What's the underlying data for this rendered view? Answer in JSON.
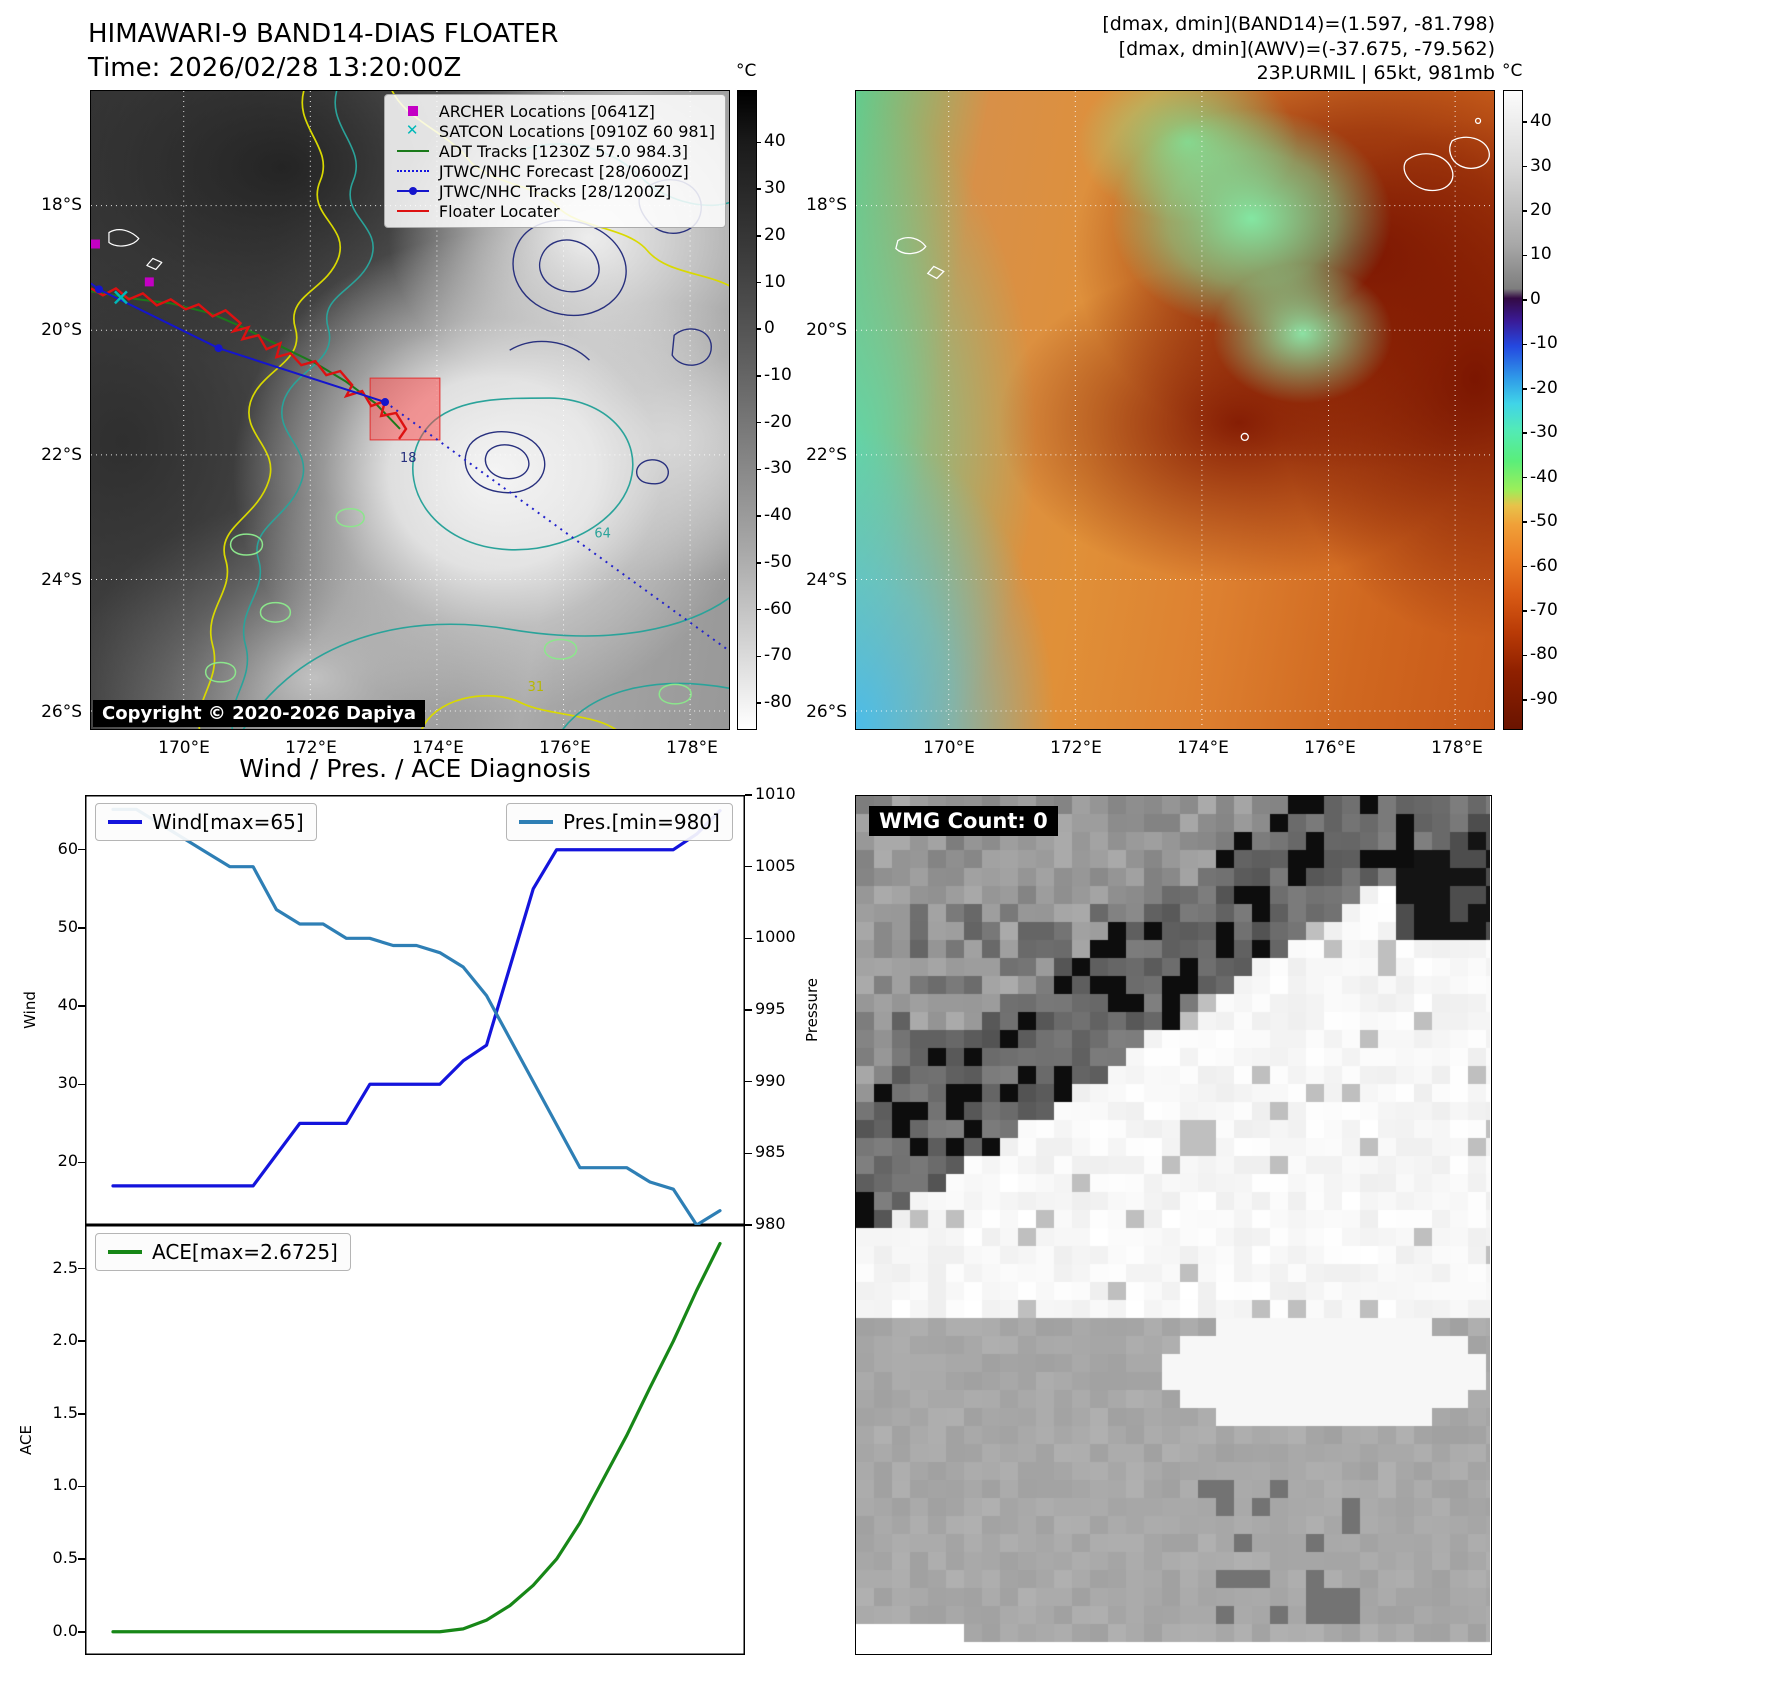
{
  "band14_panel": {
    "title": "HIMAWARI-9 BAND14-DIAS FLOATER",
    "time": "Time: 2026/02/28 13:20:00Z",
    "legend": [
      {
        "label": "ARCHER Locations [0641Z]",
        "marker": "square",
        "color": "#c400c4"
      },
      {
        "label": "SATCON Locations [0910Z 60 981]",
        "marker": "x",
        "color": "#00b8b8"
      },
      {
        "label": "ADT Tracks [1230Z 57.0 984.3]",
        "marker": "line",
        "color": "#1a7a1a"
      },
      {
        "label": "JTWC/NHC Forecast [28/0600Z]",
        "marker": "dotted",
        "color": "#1515e0"
      },
      {
        "label": "JTWC/NHC Tracks [28/1200Z]",
        "marker": "line-dot",
        "color": "#1515cc"
      },
      {
        "label": "Floater Locater",
        "marker": "line",
        "color": "#dd1111"
      }
    ],
    "copyright": "Copyright © 2020-2026 Dapiya",
    "lat_ticks": [
      "18°S",
      "20°S",
      "22°S",
      "24°S",
      "26°S"
    ],
    "lon_ticks": [
      "170°E",
      "172°E",
      "174°E",
      "176°E",
      "178°E"
    ],
    "colorbar_unit": "°C",
    "colorbar_ticks": [
      40,
      30,
      20,
      10,
      0,
      -10,
      -20,
      -30,
      -40,
      -50,
      -60,
      -70,
      -80
    ],
    "contour_labels": [
      "18",
      "64",
      "31"
    ]
  },
  "awv_panel": {
    "info_lines": [
      "[dmax, dmin](BAND14)=(1.597, -81.798)",
      "[dmax, dmin](AWV)=(-37.675, -79.562)",
      "23P.URMIL | 65kt, 981mb"
    ],
    "lat_ticks": [
      "18°S",
      "20°S",
      "22°S",
      "24°S",
      "26°S"
    ],
    "lon_ticks": [
      "170°E",
      "172°E",
      "174°E",
      "176°E",
      "178°E"
    ],
    "colorbar_unit": "°C",
    "colorbar_ticks": [
      40,
      30,
      20,
      10,
      0,
      -10,
      -20,
      -30,
      -40,
      -50,
      -60,
      -70,
      -80,
      -90
    ]
  },
  "wmg_panel": {
    "label": "WMG Count: 0"
  },
  "chart_data": [
    {
      "type": "line",
      "title": "Wind / Pres. / ACE Diagnosis",
      "xlabel": "",
      "ylabel_left": "Wind",
      "ylabel_right": "Pressure",
      "x": [
        0,
        1,
        2,
        3,
        4,
        5,
        6,
        7,
        8,
        9,
        10,
        11,
        12,
        13,
        14,
        15,
        16,
        17,
        18,
        19,
        20,
        21,
        22,
        23,
        24,
        25,
        26
      ],
      "series": [
        {
          "name": "Wind[max=65]",
          "color": "#1414dc",
          "axis": "left",
          "values": [
            17,
            17,
            17,
            17,
            17,
            17,
            17,
            21,
            25,
            25,
            25,
            30,
            30,
            30,
            30,
            33,
            35,
            45,
            55,
            60,
            60,
            60,
            60,
            60,
            60,
            62,
            65
          ]
        },
        {
          "name": "Pres.[min=980]",
          "color": "#2e7fb5",
          "axis": "right",
          "values": [
            1009,
            1009,
            1008,
            1007,
            1006,
            1005,
            1005,
            1002,
            1001,
            1001,
            1000,
            1000,
            999.5,
            999.5,
            999,
            998,
            996,
            993,
            990,
            987,
            984,
            984,
            984,
            983,
            982.5,
            980,
            981
          ]
        }
      ],
      "ylim_left": [
        12,
        67
      ],
      "ylim_right": [
        980,
        1010
      ],
      "yticks_left": [
        20,
        30,
        40,
        50,
        60
      ],
      "yticks_right": [
        980,
        985,
        990,
        995,
        1000,
        1005,
        1010
      ],
      "legend_position": "top",
      "grid": false
    },
    {
      "type": "line",
      "title": "",
      "ylabel": "ACE",
      "x": [
        0,
        1,
        2,
        3,
        4,
        5,
        6,
        7,
        8,
        9,
        10,
        11,
        12,
        13,
        14,
        15,
        16,
        17,
        18,
        19,
        20,
        21,
        22,
        23,
        24,
        25,
        26
      ],
      "series": [
        {
          "name": "ACE[max=2.6725]",
          "color": "#178717",
          "values": [
            0,
            0,
            0,
            0,
            0,
            0,
            0,
            0,
            0,
            0,
            0,
            0,
            0,
            0,
            0,
            0.02,
            0.08,
            0.18,
            0.32,
            0.5,
            0.75,
            1.05,
            1.35,
            1.68,
            2.0,
            2.35,
            2.6725
          ]
        }
      ],
      "ylim": [
        -0.16,
        2.8
      ],
      "yticks": [
        0.0,
        0.5,
        1.0,
        1.5,
        2.0,
        2.5
      ],
      "legend_position": "top-left",
      "grid": false
    }
  ]
}
